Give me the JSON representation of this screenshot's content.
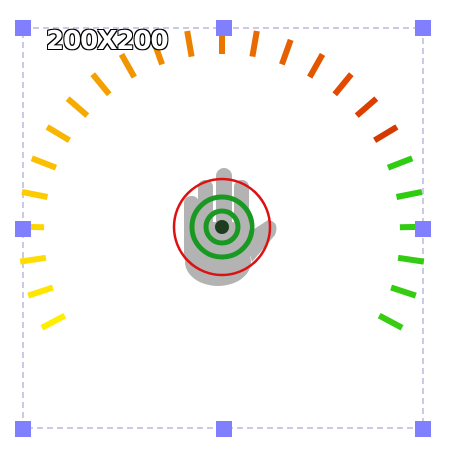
{
  "selection": {
    "size_label": "200X200",
    "frame_color": "#b9b9e0",
    "handle_color": "#8080ff"
  },
  "gauge": {
    "tick_colors": [
      "#ffee00",
      "#ffe600",
      "#ffdd00",
      "#fdd500",
      "#fccb00",
      "#fac000",
      "#f8b600",
      "#f6ab00",
      "#f3a000",
      "#f19500",
      "#ef8b00",
      "#ec8000",
      "#ea7500",
      "#e86a00",
      "#e66000",
      "#e45500",
      "#e14a00",
      "#dd3f00",
      "#d43a00",
      "#2ecc12",
      "#30cc12",
      "#32cc12",
      "#34cc12",
      "#36cc12",
      "#38cc12"
    ]
  },
  "cursor": {
    "icon": "grab-hand-icon",
    "hand_color": "#b3b3b3",
    "ring_color": "#dd1111",
    "target_color": "#1a9922"
  }
}
